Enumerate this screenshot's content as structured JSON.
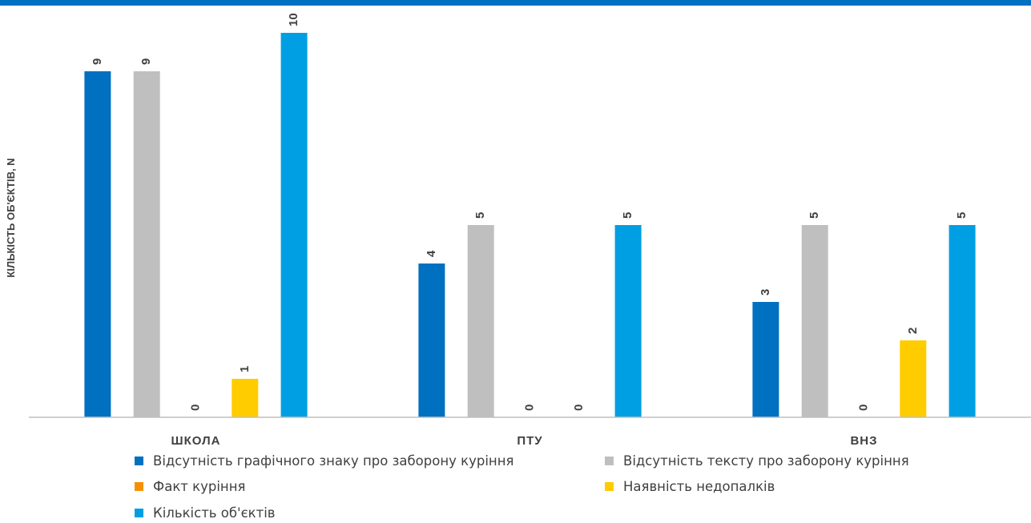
{
  "chart_data": {
    "type": "bar",
    "title": "",
    "ylabel": "КІЛЬКІСТЬ ОБ'ЄКТІВ, N",
    "xlabel": "",
    "categories": [
      "ШКОЛА",
      "ПТУ",
      "ВНЗ"
    ],
    "ylim": [
      0,
      10
    ],
    "grid": false,
    "legend_position": "bottom",
    "series": [
      {
        "name": "Відсутність графічного знаку про заборону куріння",
        "color": "#0070C0",
        "values": [
          9,
          4,
          3
        ]
      },
      {
        "name": "Відсутність тексту про заборону куріння",
        "color": "#BFBFBF",
        "values": [
          9,
          5,
          5
        ]
      },
      {
        "name": "Факт куріння",
        "color": "#F39200",
        "values": [
          0,
          0,
          0
        ]
      },
      {
        "name": "Наявність недопалків",
        "color": "#FFCC00",
        "values": [
          1,
          0,
          2
        ]
      },
      {
        "name": "Кількість об'єктів",
        "color": "#009FE3",
        "values": [
          10,
          5,
          5
        ]
      }
    ]
  }
}
